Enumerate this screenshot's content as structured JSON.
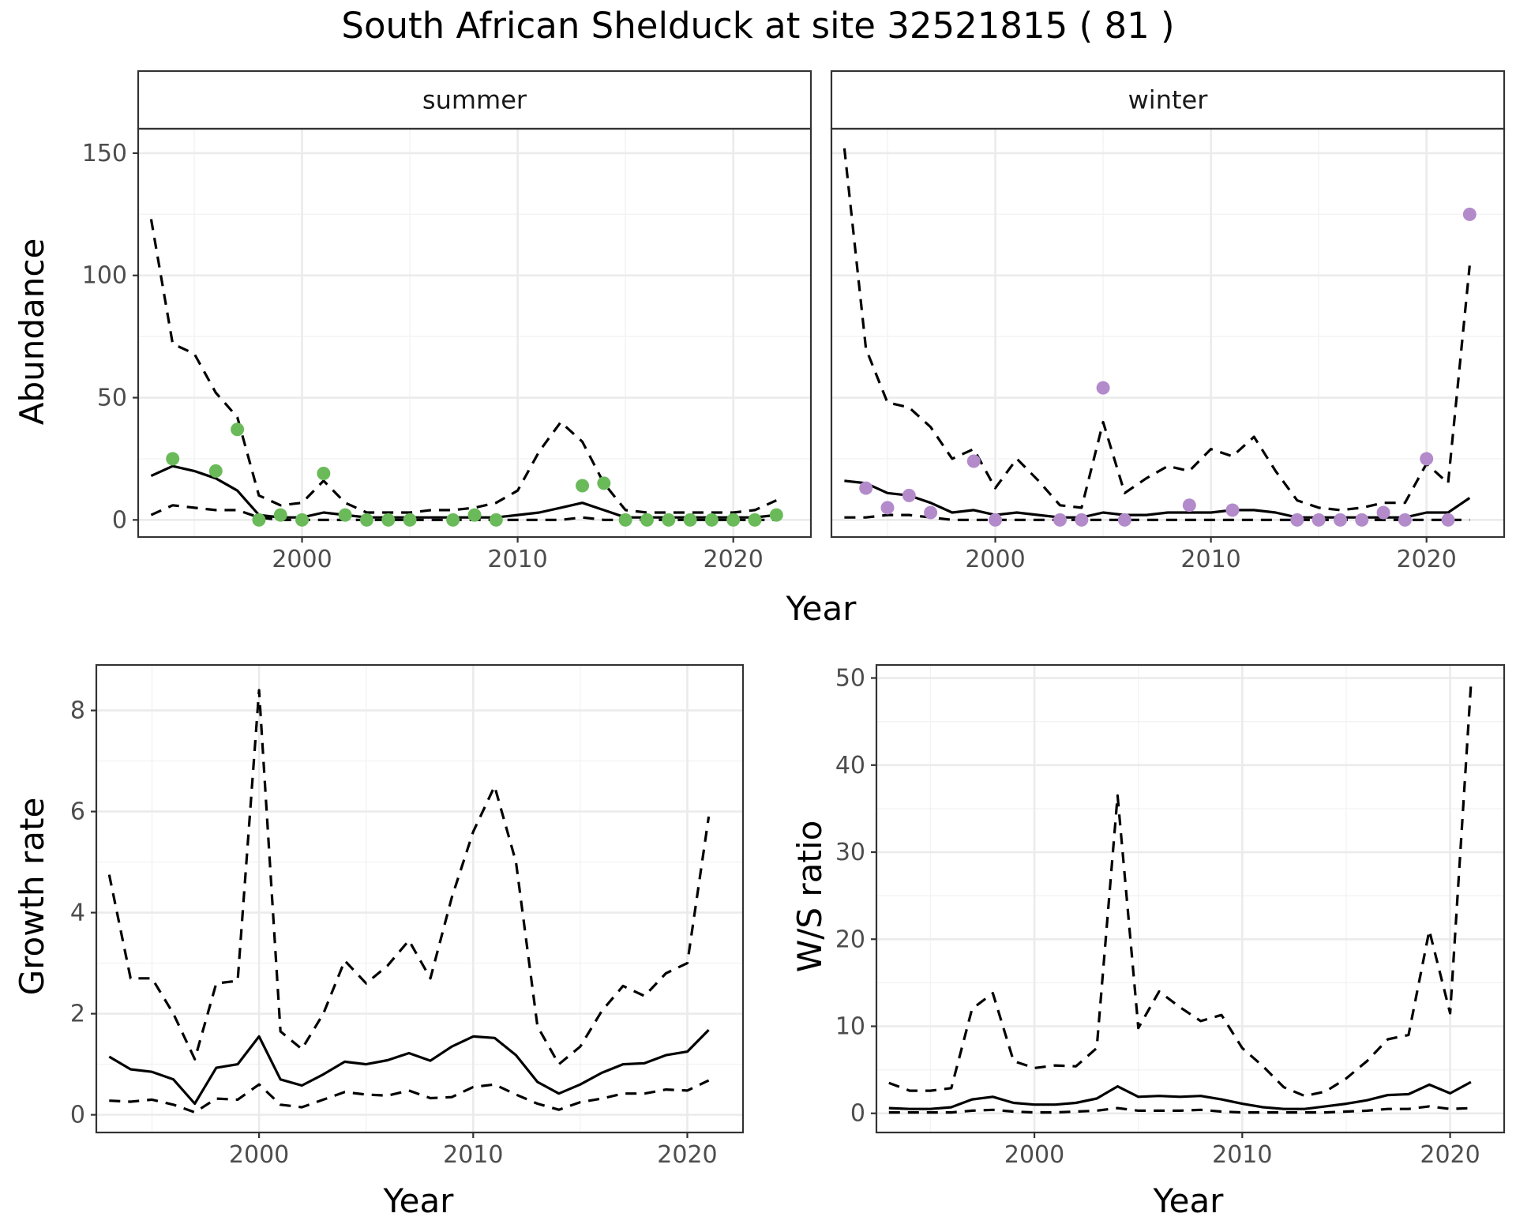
{
  "title": "South African Shelduck at site 32521815 ( 81 )",
  "colors": {
    "summer": "#6aba5a",
    "winter": "#b38bcb",
    "line": "#000000",
    "strip_bg": "#d9d9d9"
  },
  "chart_data": [
    {
      "type": "line",
      "facet": "summer",
      "xlabel": "Year",
      "ylabel": "Abundance",
      "xlim": [
        1992.4,
        2023.6
      ],
      "ylim": [
        -7,
        160
      ],
      "xticks": [
        2000,
        2010,
        2020
      ],
      "yticks": [
        0,
        50,
        100,
        150
      ],
      "x": [
        1993,
        1994,
        1995,
        1996,
        1997,
        1998,
        1999,
        2000,
        2001,
        2002,
        2003,
        2004,
        2005,
        2006,
        2007,
        2008,
        2009,
        2010,
        2011,
        2012,
        2013,
        2014,
        2015,
        2016,
        2017,
        2018,
        2019,
        2020,
        2021,
        2022
      ],
      "series": [
        {
          "style": "solid",
          "values": [
            18,
            22,
            20,
            17,
            12,
            2,
            1,
            1,
            3,
            2,
            1,
            1,
            1,
            1,
            1,
            1,
            1,
            2,
            3,
            5,
            7,
            4,
            1,
            1,
            1,
            1,
            1,
            1,
            1,
            2
          ]
        },
        {
          "style": "dashed",
          "values": [
            2,
            6,
            5,
            4,
            4,
            1,
            0,
            0,
            0,
            0,
            0,
            0,
            0,
            0,
            0,
            0,
            0,
            0,
            0,
            0,
            1,
            0,
            0,
            0,
            0,
            0,
            0,
            0,
            0,
            0
          ]
        },
        {
          "style": "dashed",
          "values": [
            123,
            72,
            68,
            52,
            42,
            10,
            6,
            7,
            16,
            7,
            3,
            3,
            3,
            4,
            4,
            5,
            7,
            12,
            28,
            40,
            32,
            15,
            4,
            3,
            3,
            3,
            3,
            3,
            4,
            8
          ]
        }
      ],
      "points": {
        "x": [
          1994,
          1996,
          1997,
          1998,
          1999,
          2000,
          2001,
          2002,
          2003,
          2004,
          2005,
          2007,
          2008,
          2009,
          2013,
          2014,
          2015,
          2016,
          2017,
          2018,
          2019,
          2020,
          2021,
          2022
        ],
        "y": [
          25,
          20,
          37,
          0,
          2,
          0,
          19,
          2,
          0,
          0,
          0,
          0,
          2,
          0,
          14,
          15,
          0,
          0,
          0,
          0,
          0,
          0,
          0,
          2
        ]
      }
    },
    {
      "type": "line",
      "facet": "winter",
      "xlabel": "Year",
      "ylabel": "Abundance",
      "xlim": [
        1992.4,
        2023.6
      ],
      "ylim": [
        -7,
        160
      ],
      "xticks": [
        2000,
        2010,
        2020
      ],
      "yticks": [
        0,
        50,
        100,
        150
      ],
      "x": [
        1993,
        1994,
        1995,
        1996,
        1997,
        1998,
        1999,
        2000,
        2001,
        2002,
        2003,
        2004,
        2005,
        2006,
        2007,
        2008,
        2009,
        2010,
        2011,
        2012,
        2013,
        2014,
        2015,
        2016,
        2017,
        2018,
        2019,
        2020,
        2021,
        2022
      ],
      "series": [
        {
          "style": "solid",
          "values": [
            16,
            15,
            11,
            10,
            7,
            3,
            4,
            2,
            3,
            2,
            1,
            1,
            3,
            2,
            2,
            3,
            3,
            3,
            4,
            4,
            3,
            1,
            1,
            1,
            1,
            1,
            1,
            3,
            3,
            9
          ]
        },
        {
          "style": "dashed",
          "values": [
            1,
            1,
            2,
            2,
            1,
            0,
            0,
            0,
            0,
            0,
            0,
            0,
            0,
            0,
            0,
            0,
            0,
            0,
            0,
            0,
            0,
            0,
            0,
            0,
            0,
            0,
            0,
            0,
            0,
            0
          ]
        },
        {
          "style": "dashed",
          "values": [
            152,
            70,
            48,
            46,
            38,
            25,
            29,
            13,
            25,
            16,
            6,
            5,
            40,
            11,
            17,
            22,
            20,
            29,
            26,
            34,
            20,
            8,
            5,
            4,
            5,
            7,
            7,
            23,
            15,
            104
          ]
        }
      ],
      "points": {
        "x": [
          1994,
          1995,
          1996,
          1997,
          1999,
          2000,
          2003,
          2004,
          2005,
          2006,
          2009,
          2011,
          2014,
          2015,
          2016,
          2017,
          2018,
          2019,
          2020,
          2021,
          2022
        ],
        "y": [
          13,
          5,
          10,
          3,
          24,
          0,
          0,
          0,
          54,
          0,
          6,
          4,
          0,
          0,
          0,
          0,
          3,
          0,
          25,
          0,
          125
        ]
      }
    },
    {
      "type": "line",
      "xlabel": "Year",
      "ylabel": "Growth rate",
      "xlim": [
        1992.4,
        2022.6
      ],
      "ylim": [
        -0.35,
        8.9
      ],
      "xticks": [
        2000,
        2010,
        2020
      ],
      "yticks": [
        0,
        2,
        4,
        6,
        8
      ],
      "x": [
        1993,
        1994,
        1995,
        1996,
        1997,
        1998,
        1999,
        2000,
        2001,
        2002,
        2003,
        2004,
        2005,
        2006,
        2007,
        2008,
        2009,
        2010,
        2011,
        2012,
        2013,
        2014,
        2015,
        2016,
        2017,
        2018,
        2019,
        2020,
        2021
      ],
      "series": [
        {
          "style": "solid",
          "values": [
            1.15,
            0.9,
            0.85,
            0.7,
            0.22,
            0.93,
            1.0,
            1.55,
            0.7,
            0.58,
            0.8,
            1.05,
            1.0,
            1.08,
            1.22,
            1.07,
            1.35,
            1.55,
            1.52,
            1.18,
            0.65,
            0.42,
            0.6,
            0.83,
            1.0,
            1.02,
            1.18,
            1.25,
            1.68
          ]
        },
        {
          "style": "dashed",
          "values": [
            0.28,
            0.26,
            0.3,
            0.2,
            0.05,
            0.32,
            0.3,
            0.6,
            0.2,
            0.15,
            0.3,
            0.45,
            0.4,
            0.38,
            0.48,
            0.33,
            0.35,
            0.55,
            0.6,
            0.4,
            0.22,
            0.1,
            0.25,
            0.32,
            0.42,
            0.42,
            0.5,
            0.48,
            0.68
          ]
        },
        {
          "style": "dashed",
          "values": [
            4.75,
            2.7,
            2.7,
            2.0,
            1.1,
            2.6,
            2.65,
            8.4,
            1.65,
            1.3,
            2.0,
            3.05,
            2.6,
            2.95,
            3.45,
            2.7,
            4.3,
            5.6,
            6.5,
            5.0,
            1.75,
            1.0,
            1.35,
            2.05,
            2.55,
            2.35,
            2.8,
            3.0,
            5.9
          ]
        }
      ]
    },
    {
      "type": "line",
      "xlabel": "Year",
      "ylabel": "W/S ratio",
      "xlim": [
        1992.4,
        2022.6
      ],
      "ylim": [
        -2.2,
        51.5
      ],
      "xticks": [
        2000,
        2010,
        2020
      ],
      "yticks": [
        0,
        10,
        20,
        30,
        40,
        50
      ],
      "x": [
        1993,
        1994,
        1995,
        1996,
        1997,
        1998,
        1999,
        2000,
        2001,
        2002,
        2003,
        2004,
        2005,
        2006,
        2007,
        2008,
        2009,
        2010,
        2011,
        2012,
        2013,
        2014,
        2015,
        2016,
        2017,
        2018,
        2019,
        2020,
        2021
      ],
      "series": [
        {
          "style": "solid",
          "values": [
            0.6,
            0.5,
            0.5,
            0.7,
            1.6,
            1.9,
            1.2,
            1.0,
            1.0,
            1.2,
            1.7,
            3.1,
            1.9,
            2.0,
            1.9,
            2.0,
            1.6,
            1.1,
            0.7,
            0.5,
            0.5,
            0.8,
            1.1,
            1.5,
            2.1,
            2.2,
            3.3,
            2.3,
            3.6
          ]
        },
        {
          "style": "dashed",
          "values": [
            0.1,
            0.1,
            0.1,
            0.1,
            0.3,
            0.4,
            0.2,
            0.1,
            0.1,
            0.2,
            0.3,
            0.6,
            0.3,
            0.3,
            0.3,
            0.4,
            0.2,
            0.1,
            0.1,
            0.1,
            0.1,
            0.1,
            0.2,
            0.3,
            0.5,
            0.5,
            0.8,
            0.5,
            0.6
          ]
        },
        {
          "style": "dashed",
          "values": [
            3.5,
            2.6,
            2.6,
            2.9,
            12.0,
            13.8,
            6.0,
            5.2,
            5.5,
            5.4,
            7.5,
            36.5,
            9.8,
            14.0,
            12.2,
            10.6,
            11.3,
            7.5,
            5.4,
            3.0,
            2.0,
            2.5,
            4.0,
            6.0,
            8.5,
            9.0,
            21.0,
            11.5,
            49.2
          ]
        }
      ]
    }
  ]
}
